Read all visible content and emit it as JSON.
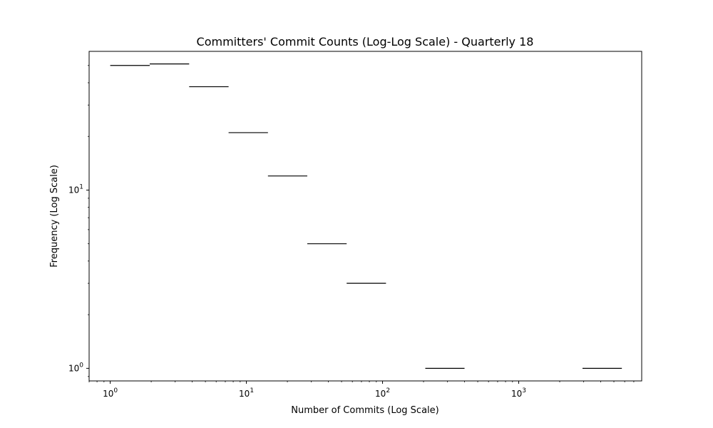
{
  "chart_data": {
    "type": "line",
    "title": "Committers' Commit Counts (Log-Log Scale) - Quarterly 18",
    "xlabel": "Number of Commits (Log Scale)",
    "ylabel": "Frequency (Log Scale)",
    "x_scale": "log",
    "y_scale": "log",
    "xlim": [
      0.7,
      8000
    ],
    "ylim": [
      0.85,
      60
    ],
    "x_ticks": [
      {
        "value": 1,
        "base": "10",
        "exp": "0"
      },
      {
        "value": 10,
        "base": "10",
        "exp": "1"
      },
      {
        "value": 100,
        "base": "10",
        "exp": "2"
      },
      {
        "value": 1000,
        "base": "10",
        "exp": "3"
      }
    ],
    "y_ticks": [
      {
        "value": 1,
        "base": "10",
        "exp": "0"
      },
      {
        "value": 10,
        "base": "10",
        "exp": "1"
      }
    ],
    "grid": false,
    "line_color": "#000000",
    "bins": [
      {
        "x_start": 1,
        "x_end": 1.95,
        "frequency": 50
      },
      {
        "x_start": 1.95,
        "x_end": 3.8,
        "frequency": 51
      },
      {
        "x_start": 3.8,
        "x_end": 7.4,
        "frequency": 38
      },
      {
        "x_start": 7.4,
        "x_end": 14.4,
        "frequency": 21
      },
      {
        "x_start": 14.4,
        "x_end": 28,
        "frequency": 12
      },
      {
        "x_start": 28,
        "x_end": 54.5,
        "frequency": 5
      },
      {
        "x_start": 54.5,
        "x_end": 106,
        "frequency": 3
      },
      {
        "x_start": 206,
        "x_end": 400,
        "frequency": 1
      },
      {
        "x_start": 2940,
        "x_end": 5720,
        "frequency": 1
      }
    ]
  }
}
